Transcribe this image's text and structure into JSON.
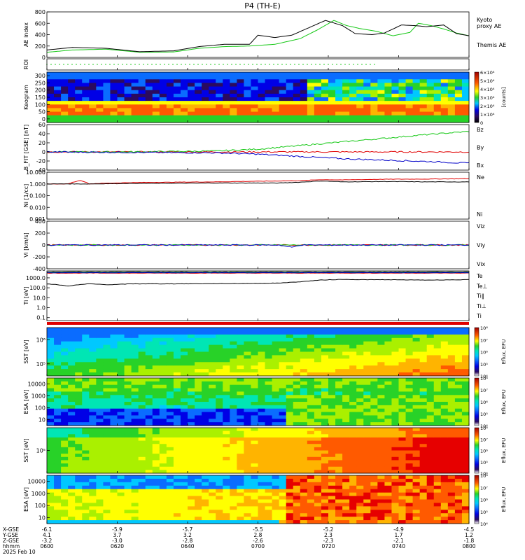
{
  "title": "P4 (TH-E)",
  "colors": {
    "red": "#e00000",
    "green": "#14c814",
    "blue": "#0000c8",
    "black": "#000000",
    "spectral": [
      "#ffffff",
      "#2b0a5e",
      "#0000e6",
      "#0a6cff",
      "#00c8ff",
      "#00e6b4",
      "#28d228",
      "#aaf000",
      "#ffff00",
      "#ffb400",
      "#ff5a00",
      "#e60000",
      "#a00000"
    ]
  },
  "chart_data": [
    {
      "type": "line",
      "ylabel": "AE index",
      "ylim": [
        0,
        800
      ],
      "yticks": [
        "0",
        "200",
        "400",
        "600",
        "800"
      ],
      "series": [
        {
          "name": "Kyoto proxy AE",
          "color": "green",
          "x": [
            0,
            0.06,
            0.14,
            0.22,
            0.3,
            0.36,
            0.42,
            0.48,
            0.54,
            0.6,
            0.64,
            0.68,
            0.71,
            0.74,
            0.78,
            0.82,
            0.86,
            0.88,
            0.91,
            0.94,
            0.97,
            1.0
          ],
          "values": [
            90,
            130,
            145,
            90,
            95,
            160,
            190,
            200,
            230,
            330,
            480,
            650,
            560,
            510,
            460,
            380,
            440,
            600,
            560,
            500,
            430,
            380
          ]
        },
        {
          "name": "Themis AE",
          "color": "black",
          "x": [
            0,
            0.06,
            0.14,
            0.22,
            0.3,
            0.36,
            0.42,
            0.48,
            0.5,
            0.54,
            0.58,
            0.62,
            0.66,
            0.7,
            0.73,
            0.77,
            0.8,
            0.84,
            0.87,
            0.9,
            0.94,
            0.97,
            1.0
          ],
          "values": [
            130,
            175,
            160,
            100,
            115,
            190,
            230,
            230,
            390,
            350,
            390,
            520,
            650,
            560,
            420,
            400,
            430,
            570,
            560,
            540,
            570,
            420,
            380
          ]
        }
      ]
    },
    {
      "type": "scatter",
      "ylabel": "ROI",
      "ylim": [
        0,
        1
      ],
      "series": [
        {
          "name": "",
          "color": "green",
          "x_start": 0.0,
          "x_end": 0.78,
          "values": [
            0.5
          ]
        }
      ]
    },
    {
      "type": "heatmap",
      "ylabel": "Keogram",
      "ylim": [
        0,
        300
      ],
      "yticks": [
        "0",
        "50",
        "100",
        "150",
        "200",
        "250",
        "300"
      ],
      "colorbar": {
        "label": "[counts]",
        "ticks": [
          "0",
          "1×10⁴",
          "2×10⁴",
          "3×10⁴",
          "4×10⁴",
          "5×10⁴",
          "6×10⁴"
        ]
      }
    },
    {
      "type": "line",
      "ylabel": "B_FIT [GSE] [nT]",
      "ylim": [
        -40,
        60
      ],
      "yticks": [
        "-40",
        "-20",
        "0",
        "20",
        "40",
        "60"
      ],
      "series": [
        {
          "name": "Bz",
          "color": "red",
          "x": [
            0,
            1
          ],
          "values": [
            0,
            0
          ]
        },
        {
          "name": "By",
          "color": "green",
          "x": [
            0,
            0.2,
            0.4,
            0.5,
            0.6,
            0.7,
            0.8,
            0.9,
            1.0
          ],
          "values": [
            0,
            0,
            2,
            6,
            14,
            22,
            30,
            38,
            45
          ]
        },
        {
          "name": "Bx",
          "color": "blue",
          "x": [
            0,
            0.2,
            0.4,
            0.5,
            0.6,
            0.7,
            0.8,
            0.9,
            1.0
          ],
          "values": [
            0,
            -1,
            -2,
            -5,
            -10,
            -15,
            -18,
            -21,
            -25
          ]
        }
      ]
    },
    {
      "type": "line",
      "ylabel": "Ni [1/cc]",
      "yscale": "log",
      "ylim": [
        0.001,
        10
      ],
      "yticks": [
        "0.001",
        "0.010",
        "0.100",
        "1.000",
        "10.000"
      ],
      "series": [
        {
          "name": "Ne",
          "color": "red",
          "x": [
            0,
            0.05,
            0.08,
            0.1,
            0.12,
            0.2,
            0.4,
            0.6,
            0.65,
            0.7,
            0.8,
            0.9,
            1.0
          ],
          "values": [
            1.0,
            1.0,
            2.0,
            1.0,
            1.1,
            1.3,
            1.5,
            1.9,
            2.3,
            2.2,
            2.5,
            2.6,
            2.8
          ]
        },
        {
          "name": "Ni",
          "color": "black",
          "x": [
            0,
            0.1,
            0.2,
            0.4,
            0.55,
            0.6,
            0.65,
            0.7,
            0.8,
            0.9,
            1.0
          ],
          "values": [
            1.0,
            1.0,
            1.1,
            1.2,
            1.2,
            1.4,
            1.8,
            1.5,
            1.6,
            1.5,
            1.5
          ]
        }
      ]
    },
    {
      "type": "line",
      "ylabel": "Vi [km/s]",
      "ylim": [
        -400,
        400
      ],
      "yticks": [
        "-400",
        "-200",
        "0",
        "200",
        "400"
      ],
      "series": [
        {
          "name": "Viz",
          "color": "red",
          "x": [
            0,
            1
          ],
          "values": [
            0,
            0
          ]
        },
        {
          "name": "Viy",
          "color": "green",
          "x": [
            0,
            1
          ],
          "values": [
            0,
            0
          ]
        },
        {
          "name": "Vix",
          "color": "blue",
          "x": [
            0,
            0.55,
            0.58,
            0.6,
            1.0
          ],
          "values": [
            0,
            0,
            -40,
            0,
            0
          ]
        }
      ]
    },
    {
      "type": "line",
      "ylabel": "Ti [eV]",
      "yscale": "log",
      "ylim": [
        0.05,
        5000
      ],
      "yticks": [
        "0.1",
        "1.0",
        "10.0",
        "100.0",
        "1000.0"
      ],
      "series": [
        {
          "name": "Te",
          "color": "black",
          "x": [
            0,
            1
          ],
          "values": [
            4000,
            4000
          ]
        },
        {
          "name": "Te⊥",
          "color": "red",
          "x": [
            0,
            1
          ],
          "values": [
            3000,
            3000
          ]
        },
        {
          "name": "Ti∥",
          "color": "green",
          "x": [
            0,
            1
          ],
          "values": [
            3500,
            3500
          ]
        },
        {
          "name": "Ti⊥",
          "color": "blue",
          "x": [
            0,
            1
          ],
          "values": [
            3300,
            3300
          ]
        },
        {
          "name": "Ti",
          "color": "black",
          "x": [
            0,
            0.05,
            0.1,
            0.15,
            0.2,
            0.3,
            0.4,
            0.5,
            0.55,
            0.6,
            0.65,
            0.7,
            0.75,
            0.8,
            0.9,
            1.0
          ],
          "values": [
            250,
            150,
            250,
            200,
            250,
            250,
            260,
            280,
            300,
            400,
            600,
            700,
            650,
            650,
            600,
            650
          ]
        }
      ]
    },
    {
      "type": "heatmap",
      "ylabel": "SST [eV]",
      "yticks": [
        "10⁵",
        "10⁶"
      ],
      "colorbar": {
        "label": "Eflux, EFU",
        "ticks": [
          "10⁴",
          "10⁵",
          "10⁶",
          "10⁷",
          "10⁸"
        ]
      }
    },
    {
      "type": "heatmap",
      "ylabel": "ESA [eV]",
      "yticks": [
        "10",
        "100",
        "1000",
        "10000"
      ],
      "colorbar": {
        "label": "Eflux, EFU",
        "ticks": [
          "10⁴",
          "10⁵",
          "10⁶",
          "10⁷",
          "10⁸"
        ]
      }
    },
    {
      "type": "heatmap",
      "ylabel": "SST [eV]",
      "yticks": [
        "10⁵"
      ],
      "colorbar": {
        "label": "Eflux, EFU",
        "ticks": [
          "10⁴",
          "10⁵",
          "10⁶",
          "10⁷",
          "10⁸"
        ]
      }
    },
    {
      "type": "heatmap",
      "ylabel": "ESA [eV]",
      "yticks": [
        "10",
        "100",
        "1000",
        "10000"
      ],
      "colorbar": {
        "label": "Eflux, EFU",
        "ticks": [
          "10⁴",
          "10⁵",
          "10⁶",
          "10⁷",
          "10⁸"
        ]
      }
    }
  ],
  "xaxis": {
    "row_labels": [
      "X-GSE",
      "Y-GSE",
      "Z-GSE",
      "hhmm",
      "2025 Feb 10"
    ],
    "ticks": [
      {
        "x": "-6.1",
        "y": "4.1",
        "z": "-3.2",
        "t": "0600"
      },
      {
        "x": "-5.9",
        "y": "3.7",
        "z": "-3.0",
        "t": "0620"
      },
      {
        "x": "-5.7",
        "y": "3.2",
        "z": "-2.8",
        "t": "0640"
      },
      {
        "x": "-5.5",
        "y": "2.8",
        "z": "-2.6",
        "t": "0700"
      },
      {
        "x": "-5.2",
        "y": "2.3",
        "z": "-2.3",
        "t": "0720"
      },
      {
        "x": "-4.9",
        "y": "1.7",
        "z": "-2.1",
        "t": "0740"
      },
      {
        "x": "-4.5",
        "y": "1.2",
        "z": "-1.8",
        "t": "0800"
      }
    ]
  }
}
